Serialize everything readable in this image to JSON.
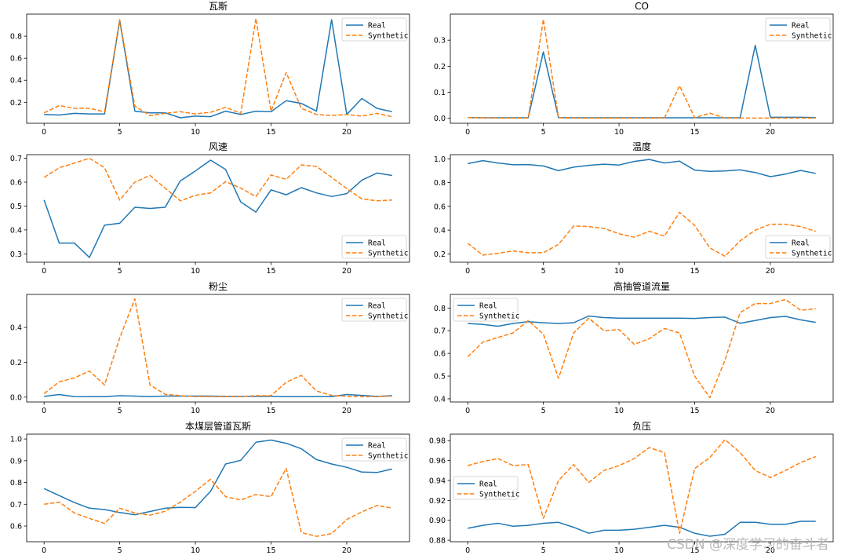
{
  "watermark": "CSDN @深度学习的奋斗者",
  "chart_data": [
    {
      "type": "line",
      "title": "瓦斯",
      "x": [
        0,
        1,
        2,
        3,
        4,
        5,
        6,
        7,
        8,
        9,
        10,
        11,
        12,
        13,
        14,
        15,
        16,
        17,
        18,
        19,
        20,
        21,
        22,
        23
      ],
      "xlim": [
        -1.15,
        24.15
      ],
      "xticks": [
        0,
        5,
        10,
        15,
        20
      ],
      "ylim": [
        0.01,
        1.0
      ],
      "yticks": [
        0.2,
        0.4,
        0.6,
        0.8
      ],
      "ytick_labels": [
        "0.2",
        "0.4",
        "0.6",
        "0.8"
      ],
      "legend": "top-right",
      "series": [
        {
          "name": "Real",
          "color": "#1f77b4",
          "dash": "solid",
          "values": [
            0.09,
            0.085,
            0.1,
            0.095,
            0.095,
            0.94,
            0.12,
            0.105,
            0.105,
            0.06,
            0.075,
            0.07,
            0.12,
            0.09,
            0.12,
            0.115,
            0.215,
            0.19,
            0.12,
            0.95,
            0.09,
            0.235,
            0.145,
            0.115
          ]
        },
        {
          "name": "Synthetic",
          "color": "#ff7f0e",
          "dash": "dashed",
          "values": [
            0.105,
            0.17,
            0.145,
            0.145,
            0.115,
            0.95,
            0.165,
            0.08,
            0.1,
            0.115,
            0.095,
            0.11,
            0.155,
            0.1,
            0.96,
            0.12,
            0.47,
            0.145,
            0.09,
            0.08,
            0.09,
            0.075,
            0.1,
            0.07
          ]
        }
      ]
    },
    {
      "type": "line",
      "title": "CO",
      "x": [
        0,
        1,
        2,
        3,
        4,
        5,
        6,
        7,
        8,
        9,
        10,
        11,
        12,
        13,
        14,
        15,
        16,
        17,
        18,
        19,
        20,
        21,
        22,
        23
      ],
      "xlim": [
        -1.15,
        24.15
      ],
      "xticks": [
        0,
        5,
        10,
        15,
        20
      ],
      "ylim": [
        -0.019,
        0.4
      ],
      "yticks": [
        0.0,
        0.1,
        0.2,
        0.3
      ],
      "ytick_labels": [
        "0.0",
        "0.1",
        "0.2",
        "0.3"
      ],
      "legend": "top-right",
      "series": [
        {
          "name": "Real",
          "color": "#1f77b4",
          "dash": "solid",
          "values": [
            0.003,
            0.002,
            0.002,
            0.002,
            0.002,
            0.255,
            0.003,
            0.002,
            0.002,
            0.002,
            0.002,
            0.002,
            0.002,
            0.002,
            0.002,
            0.002,
            0.002,
            0.002,
            0.002,
            0.28,
            0.004,
            0.004,
            0.004,
            0.003
          ]
        },
        {
          "name": "Synthetic",
          "color": "#ff7f0e",
          "dash": "dashed",
          "values": [
            0.003,
            0.002,
            0.001,
            0.001,
            0.001,
            0.38,
            0.002,
            0.001,
            0.001,
            0.001,
            0.001,
            0.001,
            0.001,
            0.001,
            0.125,
            0.002,
            0.02,
            0.001,
            0.001,
            0.001,
            0.001,
            0.001,
            0.001,
            0.001
          ]
        }
      ]
    },
    {
      "type": "line",
      "title": "风速",
      "x": [
        0,
        1,
        2,
        3,
        4,
        5,
        6,
        7,
        8,
        9,
        10,
        11,
        12,
        13,
        14,
        15,
        16,
        17,
        18,
        19,
        20,
        21,
        22,
        23
      ],
      "xlim": [
        -1.15,
        24.15
      ],
      "xticks": [
        0,
        5,
        10,
        15,
        20
      ],
      "ylim": [
        0.265,
        0.715
      ],
      "yticks": [
        0.3,
        0.4,
        0.5,
        0.6,
        0.7
      ],
      "ytick_labels": [
        "0.3",
        "0.4",
        "0.5",
        "0.6",
        "0.7"
      ],
      "legend": "bottom-right",
      "series": [
        {
          "name": "Real",
          "color": "#1f77b4",
          "dash": "solid",
          "values": [
            0.525,
            0.345,
            0.345,
            0.285,
            0.42,
            0.428,
            0.495,
            0.49,
            0.495,
            0.605,
            0.647,
            0.692,
            0.653,
            0.517,
            0.475,
            0.568,
            0.547,
            0.577,
            0.555,
            0.54,
            0.552,
            0.608,
            0.638,
            0.628
          ]
        },
        {
          "name": "Synthetic",
          "color": "#ff7f0e",
          "dash": "dashed",
          "values": [
            0.62,
            0.66,
            0.68,
            0.7,
            0.66,
            0.525,
            0.6,
            0.628,
            0.575,
            0.522,
            0.545,
            0.555,
            0.602,
            0.575,
            0.54,
            0.63,
            0.612,
            0.672,
            0.666,
            0.62,
            0.573,
            0.53,
            0.522,
            0.525
          ]
        }
      ]
    },
    {
      "type": "line",
      "title": "温度",
      "x": [
        0,
        1,
        2,
        3,
        4,
        5,
        6,
        7,
        8,
        9,
        10,
        11,
        12,
        13,
        14,
        15,
        16,
        17,
        18,
        19,
        20,
        21,
        22,
        23
      ],
      "xlim": [
        -1.15,
        24.15
      ],
      "xticks": [
        0,
        5,
        10,
        15,
        20
      ],
      "ylim": [
        0.13,
        1.035
      ],
      "yticks": [
        0.2,
        0.4,
        0.6,
        0.8,
        1.0
      ],
      "ytick_labels": [
        "0.2",
        "0.4",
        "0.6",
        "0.8",
        "1.0"
      ],
      "legend": "bottom-right",
      "series": [
        {
          "name": "Real",
          "color": "#1f77b4",
          "dash": "solid",
          "values": [
            0.96,
            0.985,
            0.965,
            0.95,
            0.952,
            0.94,
            0.9,
            0.93,
            0.945,
            0.955,
            0.948,
            0.978,
            0.995,
            0.965,
            0.98,
            0.905,
            0.895,
            0.898,
            0.907,
            0.885,
            0.85,
            0.872,
            0.902,
            0.878
          ]
        },
        {
          "name": "Synthetic",
          "color": "#ff7f0e",
          "dash": "dashed",
          "values": [
            0.29,
            0.19,
            0.205,
            0.225,
            0.21,
            0.21,
            0.28,
            0.435,
            0.43,
            0.415,
            0.37,
            0.34,
            0.39,
            0.35,
            0.55,
            0.44,
            0.25,
            0.18,
            0.31,
            0.4,
            0.45,
            0.45,
            0.43,
            0.39
          ]
        }
      ]
    },
    {
      "type": "line",
      "title": "粉尘",
      "x": [
        0,
        1,
        2,
        3,
        4,
        5,
        6,
        7,
        8,
        9,
        10,
        11,
        12,
        13,
        14,
        15,
        16,
        17,
        18,
        19,
        20,
        21,
        22,
        23
      ],
      "xlim": [
        -1.15,
        24.15
      ],
      "xticks": [
        0,
        5,
        10,
        15,
        20
      ],
      "ylim": [
        -0.028,
        0.59
      ],
      "yticks": [
        0.0,
        0.2,
        0.4
      ],
      "ytick_labels": [
        "0.0",
        "0.2",
        "0.4"
      ],
      "legend": "top-right",
      "series": [
        {
          "name": "Real",
          "color": "#1f77b4",
          "dash": "solid",
          "values": [
            0.004,
            0.015,
            0.003,
            0.002,
            0.002,
            0.008,
            0.006,
            0.003,
            0.006,
            0.006,
            0.006,
            0.006,
            0.004,
            0.004,
            0.004,
            0.004,
            0.002,
            0.002,
            0.003,
            0.003,
            0.015,
            0.01,
            0.004,
            0.008
          ]
        },
        {
          "name": "Synthetic",
          "color": "#ff7f0e",
          "dash": "dashed",
          "values": [
            0.02,
            0.088,
            0.11,
            0.15,
            0.07,
            0.34,
            0.565,
            0.07,
            0.016,
            0.008,
            0.003,
            0.003,
            0.003,
            0.003,
            0.008,
            0.008,
            0.085,
            0.125,
            0.035,
            0.01,
            0.005,
            0.003,
            0.003,
            0.006
          ]
        }
      ]
    },
    {
      "type": "line",
      "title": "高抽管道流量",
      "x": [
        0,
        1,
        2,
        3,
        4,
        5,
        6,
        7,
        8,
        9,
        10,
        11,
        12,
        13,
        14,
        15,
        16,
        17,
        18,
        19,
        20,
        21,
        22,
        23
      ],
      "xlim": [
        -1.15,
        24.15
      ],
      "xticks": [
        0,
        5,
        10,
        15,
        20
      ],
      "ylim": [
        0.386,
        0.86
      ],
      "yticks": [
        0.4,
        0.5,
        0.6,
        0.7,
        0.8
      ],
      "ytick_labels": [
        "0.4",
        "0.5",
        "0.6",
        "0.7",
        "0.8"
      ],
      "legend": "top-left",
      "series": [
        {
          "name": "Real",
          "color": "#1f77b4",
          "dash": "solid",
          "values": [
            0.732,
            0.728,
            0.72,
            0.732,
            0.74,
            0.735,
            0.732,
            0.735,
            0.765,
            0.758,
            0.755,
            0.755,
            0.755,
            0.755,
            0.755,
            0.754,
            0.758,
            0.76,
            0.733,
            0.745,
            0.758,
            0.763,
            0.748,
            0.737
          ]
        },
        {
          "name": "Synthetic",
          "color": "#ff7f0e",
          "dash": "dashed",
          "values": [
            0.585,
            0.65,
            0.67,
            0.69,
            0.745,
            0.685,
            0.49,
            0.69,
            0.755,
            0.7,
            0.705,
            0.64,
            0.665,
            0.71,
            0.69,
            0.5,
            0.405,
            0.57,
            0.78,
            0.82,
            0.82,
            0.838,
            0.79,
            0.797
          ]
        }
      ]
    },
    {
      "type": "line",
      "title": "本煤层管道瓦斯",
      "x": [
        0,
        1,
        2,
        3,
        4,
        5,
        6,
        7,
        8,
        9,
        10,
        11,
        12,
        13,
        14,
        15,
        16,
        17,
        18,
        19,
        20,
        21,
        22,
        23
      ],
      "xlim": [
        -1.15,
        24.15
      ],
      "xticks": [
        0,
        5,
        10,
        15,
        20
      ],
      "ylim": [
        0.528,
        1.022
      ],
      "yticks": [
        0.6,
        0.7,
        0.8,
        0.9,
        1.0
      ],
      "ytick_labels": [
        "0.6",
        "0.7",
        "0.8",
        "0.9",
        "1.0"
      ],
      "legend": "top-right",
      "series": [
        {
          "name": "Real",
          "color": "#1f77b4",
          "dash": "solid",
          "values": [
            0.772,
            0.74,
            0.708,
            0.682,
            0.676,
            0.662,
            0.652,
            0.667,
            0.682,
            0.686,
            0.685,
            0.76,
            0.885,
            0.902,
            0.985,
            0.995,
            0.98,
            0.955,
            0.905,
            0.885,
            0.87,
            0.848,
            0.846,
            0.862
          ]
        },
        {
          "name": "Synthetic",
          "color": "#ff7f0e",
          "dash": "dashed",
          "values": [
            0.7,
            0.71,
            0.66,
            0.635,
            0.612,
            0.682,
            0.66,
            0.65,
            0.668,
            0.71,
            0.76,
            0.815,
            0.735,
            0.72,
            0.745,
            0.735,
            0.865,
            0.57,
            0.553,
            0.565,
            0.63,
            0.665,
            0.695,
            0.682
          ]
        }
      ]
    },
    {
      "type": "line",
      "title": "负压",
      "x": [
        0,
        1,
        2,
        3,
        4,
        5,
        6,
        7,
        8,
        9,
        10,
        11,
        12,
        13,
        14,
        15,
        16,
        17,
        18,
        19,
        20,
        21,
        22,
        23
      ],
      "xlim": [
        -1.15,
        24.15
      ],
      "xticks": [
        0,
        5,
        10,
        15,
        20
      ],
      "ylim": [
        0.8785,
        0.9865
      ],
      "yticks": [
        0.88,
        0.9,
        0.92,
        0.94,
        0.96,
        0.98
      ],
      "ytick_labels": [
        "0.88",
        "0.90",
        "0.92",
        "0.94",
        "0.96",
        "0.98"
      ],
      "legend": "center-left",
      "series": [
        {
          "name": "Real",
          "color": "#1f77b4",
          "dash": "solid",
          "values": [
            0.892,
            0.895,
            0.897,
            0.894,
            0.895,
            0.897,
            0.898,
            0.893,
            0.887,
            0.89,
            0.89,
            0.891,
            0.893,
            0.895,
            0.893,
            0.887,
            0.884,
            0.886,
            0.898,
            0.898,
            0.896,
            0.896,
            0.899,
            0.899
          ]
        },
        {
          "name": "Synthetic",
          "color": "#ff7f0e",
          "dash": "dashed",
          "values": [
            0.955,
            0.959,
            0.962,
            0.955,
            0.956,
            0.902,
            0.94,
            0.956,
            0.938,
            0.95,
            0.955,
            0.962,
            0.973,
            0.968,
            0.887,
            0.952,
            0.963,
            0.981,
            0.968,
            0.95,
            0.943,
            0.95,
            0.958,
            0.964
          ]
        }
      ]
    }
  ]
}
